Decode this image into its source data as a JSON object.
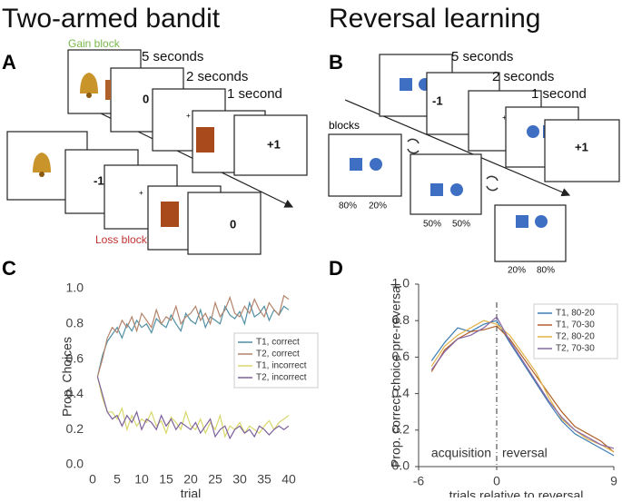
{
  "headings": [
    "Two-armed bandit",
    "Reversal learning"
  ],
  "panel_labels": [
    "A",
    "B",
    "C",
    "D"
  ],
  "diagram_a": {
    "gain_label": "Gain block",
    "loss_label": "Loss block",
    "durations": [
      "5 seconds",
      "2 seconds",
      "1 second"
    ],
    "gain_outcomes": [
      "0",
      "+1"
    ],
    "loss_outcomes": [
      "-1",
      "0"
    ]
  },
  "diagram_b": {
    "durations": [
      "5 seconds",
      "2 seconds",
      "1 second"
    ],
    "outcomes": [
      "-1",
      "+1"
    ],
    "blocks_label": "blocks",
    "block_probs": [
      [
        "80%",
        "20%"
      ],
      [
        "50%",
        "50%"
      ],
      [
        "20%",
        "80%"
      ]
    ]
  },
  "chart_data": [
    {
      "type": "line",
      "xlabel": "trial",
      "ylabel": "Prop. Choices",
      "axis_lines": false,
      "legend": "center right",
      "x": [
        1,
        2,
        3,
        4,
        5,
        6,
        7,
        8,
        9,
        10,
        11,
        12,
        13,
        14,
        15,
        16,
        17,
        18,
        19,
        20,
        21,
        22,
        23,
        24,
        25,
        26,
        27,
        28,
        29,
        30,
        31,
        32,
        33,
        34,
        35,
        36,
        37,
        38,
        39,
        40
      ],
      "xlim": [
        0,
        40
      ],
      "xticks": [
        0,
        5,
        10,
        15,
        20,
        25,
        30,
        35,
        40
      ],
      "ylim": [
        0,
        1
      ],
      "yticks": [
        {
          "value": 0,
          "label": "0.0"
        },
        0.2,
        0.4,
        0.6,
        0.8,
        {
          "value": 1,
          "label": "1.0"
        }
      ],
      "series": [
        {
          "name": "T1, correct",
          "color": "#4f8fa3",
          "values": [
            0.5,
            0.62,
            0.7,
            0.74,
            0.78,
            0.72,
            0.8,
            0.76,
            0.82,
            0.78,
            0.8,
            0.75,
            0.83,
            0.8,
            0.78,
            0.85,
            0.8,
            0.76,
            0.86,
            0.82,
            0.8,
            0.88,
            0.78,
            0.84,
            0.82,
            0.8,
            0.9,
            0.85,
            0.83,
            0.87,
            0.8,
            0.92,
            0.84,
            0.86,
            0.9,
            0.82,
            0.88,
            0.85,
            0.9,
            0.88
          ]
        },
        {
          "name": "T2, correct",
          "color": "#b3836a",
          "values": [
            0.5,
            0.6,
            0.72,
            0.78,
            0.75,
            0.82,
            0.78,
            0.84,
            0.76,
            0.86,
            0.82,
            0.78,
            0.88,
            0.8,
            0.84,
            0.82,
            0.9,
            0.8,
            0.84,
            0.86,
            0.9,
            0.82,
            0.86,
            0.8,
            0.92,
            0.84,
            0.88,
            0.95,
            0.86,
            0.84,
            0.9,
            0.86,
            0.94,
            0.88,
            0.84,
            0.92,
            0.88,
            0.85,
            0.96,
            0.94
          ]
        },
        {
          "name": "T1, incorrect",
          "color": "#d8d86a",
          "values": [
            0.5,
            0.38,
            0.3,
            0.3,
            0.26,
            0.32,
            0.2,
            0.28,
            0.22,
            0.26,
            0.24,
            0.3,
            0.22,
            0.25,
            0.18,
            0.27,
            0.24,
            0.2,
            0.3,
            0.22,
            0.2,
            0.26,
            0.18,
            0.24,
            0.2,
            0.28,
            0.16,
            0.22,
            0.2,
            0.24,
            0.18,
            0.22,
            0.2,
            0.18,
            0.22,
            0.25,
            0.2,
            0.24,
            0.26,
            0.28
          ]
        },
        {
          "name": "T2, incorrect",
          "color": "#7d5f9c",
          "values": [
            0.5,
            0.4,
            0.3,
            0.26,
            0.28,
            0.22,
            0.28,
            0.24,
            0.3,
            0.2,
            0.26,
            0.24,
            0.2,
            0.28,
            0.22,
            0.26,
            0.2,
            0.24,
            0.22,
            0.2,
            0.24,
            0.18,
            0.22,
            0.26,
            0.16,
            0.2,
            0.22,
            0.15,
            0.2,
            0.22,
            0.18,
            0.2,
            0.16,
            0.22,
            0.2,
            0.17,
            0.2,
            0.22,
            0.2,
            0.22
          ]
        }
      ]
    },
    {
      "type": "line",
      "xlabel": "trials relative to reversal",
      "ylabel": "Prop.  correct choice pre-reversal",
      "axis_lines": true,
      "legend": "upper right",
      "vline": 0,
      "annotations": [
        "acquisition",
        "reversal"
      ],
      "x": [
        -5,
        -4,
        -3,
        -2,
        -1,
        0,
        1,
        2,
        3,
        4,
        5,
        6,
        7,
        8,
        9
      ],
      "xlim": [
        -6,
        9
      ],
      "xticks": [
        -6,
        0,
        9
      ],
      "ylim": [
        0,
        1
      ],
      "yticks": [
        {
          "value": 0,
          "label": "0.0"
        },
        0.2,
        0.4,
        0.6,
        0.8,
        {
          "value": 1,
          "label": "1.0"
        }
      ],
      "series": [
        {
          "name": "T1, 80-20",
          "color": "#3d7db3",
          "values": [
            0.58,
            0.68,
            0.76,
            0.74,
            0.78,
            0.8,
            0.68,
            0.57,
            0.46,
            0.35,
            0.25,
            0.18,
            0.14,
            0.1,
            0.06
          ]
        },
        {
          "name": "T1, 70-30",
          "color": "#b2612a",
          "values": [
            0.52,
            0.64,
            0.7,
            0.74,
            0.75,
            0.77,
            0.7,
            0.6,
            0.5,
            0.4,
            0.3,
            0.22,
            0.18,
            0.14,
            0.08
          ]
        },
        {
          "name": "T2, 80-20",
          "color": "#e2b448",
          "values": [
            0.55,
            0.66,
            0.72,
            0.76,
            0.8,
            0.78,
            0.72,
            0.62,
            0.52,
            0.38,
            0.26,
            0.2,
            0.15,
            0.12,
            0.08
          ]
        },
        {
          "name": "T2, 70-30",
          "color": "#8565a6",
          "values": [
            0.53,
            0.63,
            0.7,
            0.72,
            0.76,
            0.82,
            0.69,
            0.58,
            0.47,
            0.36,
            0.27,
            0.2,
            0.16,
            0.12,
            0.1
          ]
        }
      ]
    }
  ]
}
